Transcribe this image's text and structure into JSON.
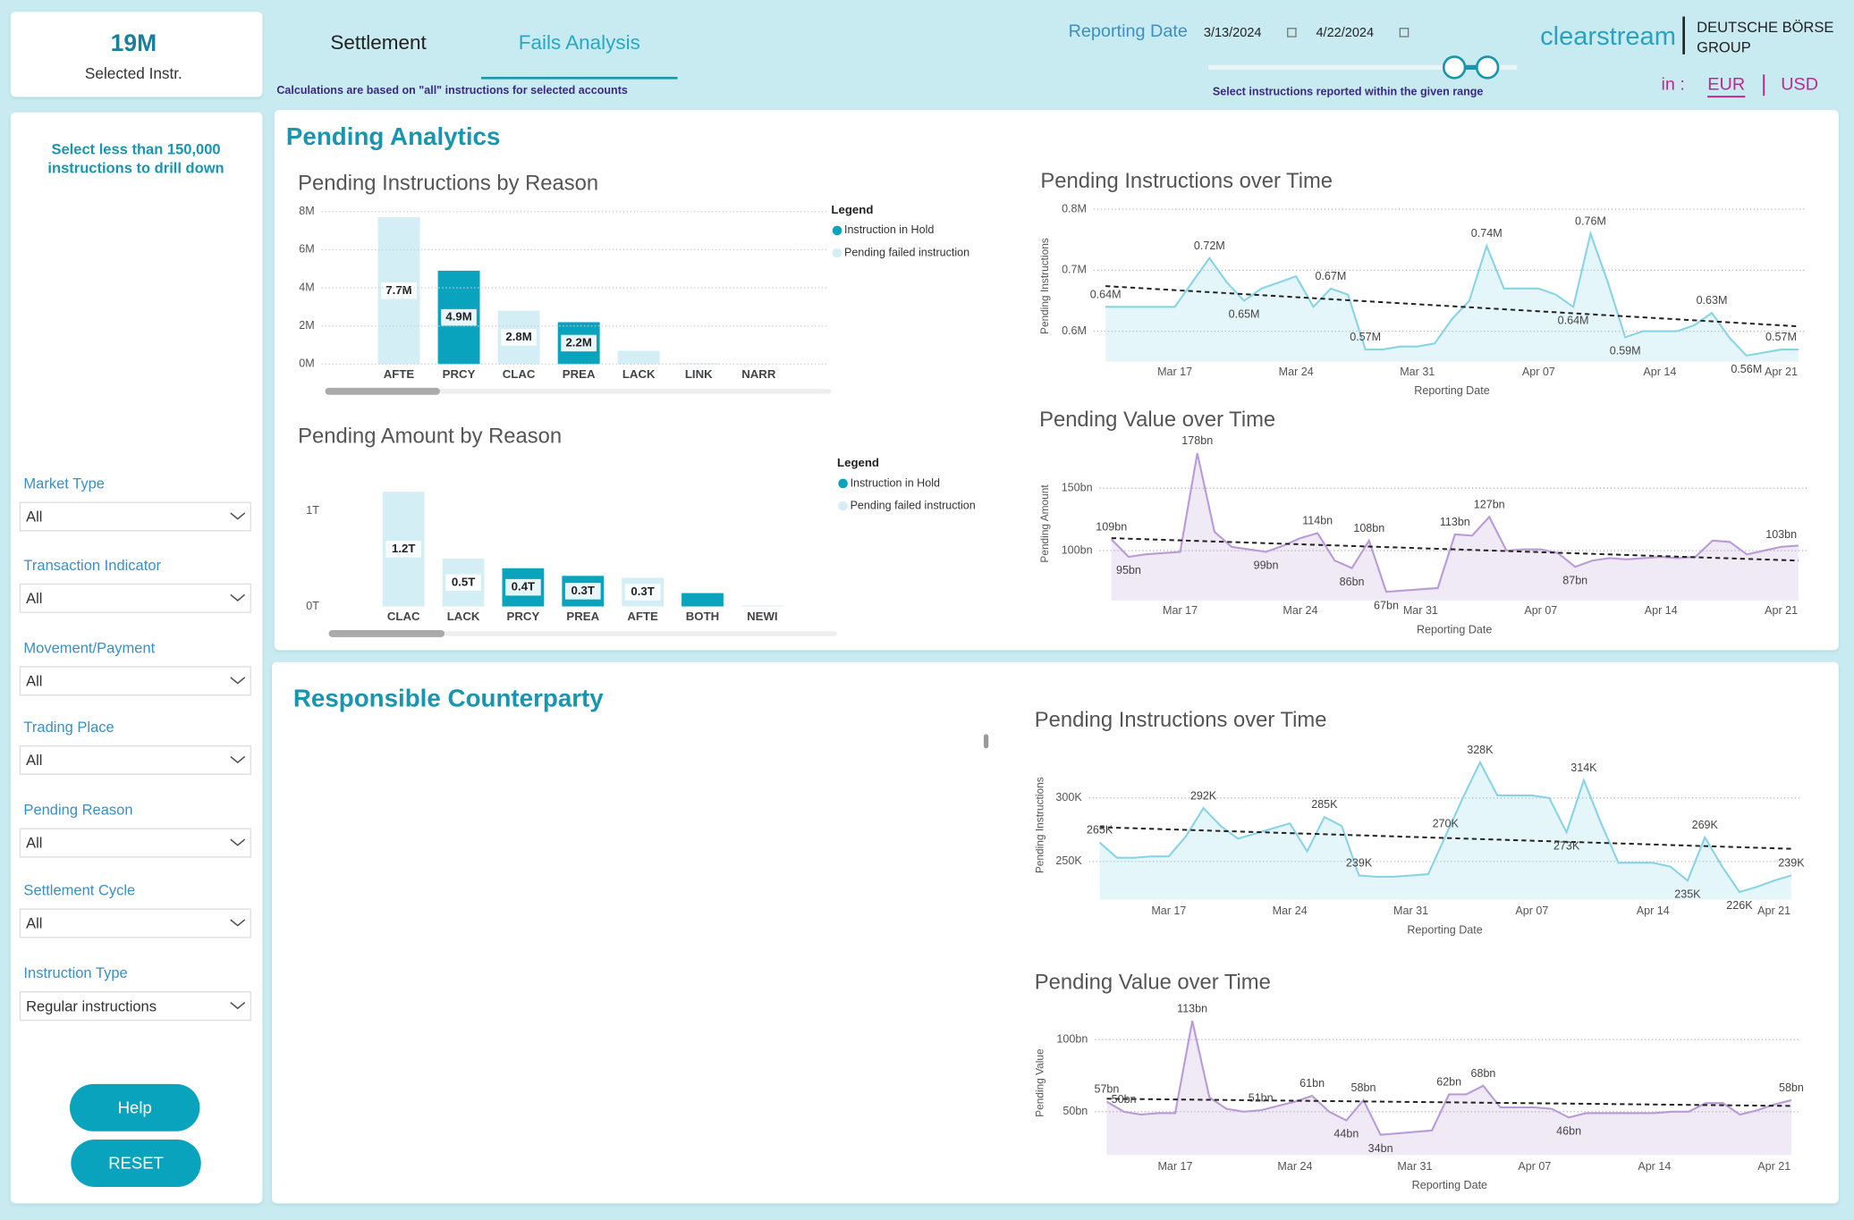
{
  "header": {
    "selected_count": "19M",
    "selected_label": "Selected Instr.",
    "tabs": [
      "Settlement",
      "Fails Analysis"
    ],
    "note": "Calculations are based on \"all\" instructions for selected accounts",
    "date_label": "Reporting Date",
    "date_from": "3/13/2024",
    "date_to": "4/22/2024",
    "date_hint": "Select instructions reported within the given range",
    "brand": "clearstream",
    "group": [
      "DEUTSCHE BÖRSE",
      "GROUP"
    ],
    "currency_label": "in :",
    "currencies": [
      "EUR",
      "USD"
    ]
  },
  "sidebar": {
    "hint": [
      "Select less than 150,000",
      "instructions to drill down"
    ],
    "filters": [
      {
        "label": "Market Type",
        "value": "All"
      },
      {
        "label": "Transaction Indicator",
        "value": "All"
      },
      {
        "label": "Movement/Payment",
        "value": "All"
      },
      {
        "label": "Trading Place",
        "value": "All"
      },
      {
        "label": "Pending Reason",
        "value": "All"
      },
      {
        "label": "Settlement Cycle",
        "value": "All"
      },
      {
        "label": "Instruction Type",
        "value": "Regular instructions"
      }
    ],
    "buttons": [
      "Help",
      "RESET"
    ]
  },
  "sections": [
    "Pending Analytics",
    "Responsible Counterparty"
  ],
  "chart_data": [
    {
      "type": "bar",
      "title": "Pending Instructions by Reason",
      "legend_title": "Legend",
      "grid": true,
      "categories": [
        "AFTE",
        "PRCY",
        "CLAC",
        "PREA",
        "LACK",
        "LINK",
        "NARR"
      ],
      "series": [
        {
          "name": "Instruction in Hold",
          "color": "#0aa3bd",
          "values": [
            0,
            4900000,
            0,
            2200000,
            0,
            0,
            0
          ],
          "value_labels": [
            null,
            "4.9M",
            null,
            "2.2M",
            null,
            null,
            null
          ]
        },
        {
          "name": "Pending failed instruction",
          "color": "#d4eef6",
          "values": [
            7700000,
            0,
            2800000,
            0,
            700000,
            50000,
            10000
          ],
          "value_labels": [
            "7.7M",
            null,
            "2.8M",
            null,
            null,
            null,
            null
          ]
        }
      ],
      "ylim": [
        0,
        8000000
      ],
      "yticks": [
        {
          "value": 0,
          "label": "0M"
        },
        {
          "value": 2000000,
          "label": "2M"
        },
        {
          "value": 4000000,
          "label": "4M"
        },
        {
          "value": 6000000,
          "label": "6M"
        },
        {
          "value": 8000000,
          "label": "8M"
        }
      ]
    },
    {
      "type": "bar",
      "title": "Pending Amount by Reason",
      "legend_title": "Legend",
      "grid": false,
      "categories": [
        "CLAC",
        "LACK",
        "PRCY",
        "PREA",
        "AFTE",
        "BOTH",
        "NEWI"
      ],
      "series": [
        {
          "name": "Instruction in Hold",
          "color": "#0aa3bd",
          "values": [
            0,
            0,
            400000000000.0,
            320000000000.0,
            0,
            140000000000.0,
            0
          ],
          "value_labels": [
            null,
            null,
            "0.4T",
            "0.3T",
            null,
            null,
            null
          ]
        },
        {
          "name": "Pending failed instruction",
          "color": "#d4eef6",
          "values": [
            1200000000000.0,
            500000000000.0,
            0,
            0,
            300000000000.0,
            0,
            10000000000.0
          ],
          "value_labels": [
            "1.2T",
            "0.5T",
            null,
            null,
            "0.3T",
            null,
            null
          ]
        }
      ],
      "ylim": [
        0,
        1200000000000.0
      ],
      "yticks": [
        {
          "value": 0,
          "label": "0T"
        },
        {
          "value": 1000000000000.0,
          "label": "1T"
        }
      ]
    },
    {
      "type": "line",
      "title": "Pending Instructions over Time",
      "xlabel": "Reporting Date",
      "ylabel": "Pending Instructions",
      "grid": true,
      "color": "#88d4e6",
      "x": [
        "Mar 13",
        "Mar 14",
        "Mar 15",
        "Mar 16",
        "Mar 17",
        "Mar 18",
        "Mar 19",
        "Mar 20",
        "Mar 21",
        "Mar 22",
        "Mar 23",
        "Mar 24",
        "Mar 25",
        "Mar 26",
        "Mar 27",
        "Mar 28",
        "Mar 29",
        "Mar 30",
        "Mar 31",
        "Apr 01",
        "Apr 02",
        "Apr 03",
        "Apr 04",
        "Apr 05",
        "Apr 06",
        "Apr 07",
        "Apr 08",
        "Apr 09",
        "Apr 10",
        "Apr 11",
        "Apr 12",
        "Apr 13",
        "Apr 14",
        "Apr 15",
        "Apr 16",
        "Apr 17",
        "Apr 18",
        "Apr 19",
        "Apr 20",
        "Apr 21",
        "Apr 22"
      ],
      "xticks": [
        "Mar 17",
        "Mar 24",
        "Mar 31",
        "Apr 07",
        "Apr 14",
        "Apr 21"
      ],
      "values": [
        640000,
        640000,
        640000,
        640000,
        640000,
        680000,
        720000,
        680000,
        650000,
        670000,
        680000,
        690000,
        640000,
        670000,
        660000,
        570000,
        570000,
        575000,
        575000,
        580000,
        620000,
        650000,
        740000,
        670000,
        670000,
        670000,
        660000,
        640000,
        760000,
        680000,
        590000,
        600000,
        600000,
        600000,
        610000,
        630000,
        590000,
        560000,
        565000,
        570000,
        570000
      ],
      "value_labels": [
        "0.64M",
        null,
        null,
        null,
        null,
        null,
        "0.72M",
        null,
        "0.65M",
        null,
        null,
        null,
        null,
        "0.67M",
        null,
        "0.57M",
        null,
        null,
        null,
        null,
        null,
        null,
        "0.74M",
        null,
        null,
        null,
        null,
        "0.64M",
        "0.76M",
        null,
        "0.59M",
        null,
        null,
        null,
        null,
        "0.63M",
        null,
        "0.56M",
        null,
        "0.57M",
        null
      ],
      "trend": [
        674000,
        608000
      ],
      "ylim": [
        550000,
        800000
      ],
      "yticks": [
        {
          "value": 600000,
          "label": "0.6M"
        },
        {
          "value": 700000,
          "label": "0.7M"
        },
        {
          "value": 800000,
          "label": "0.8M"
        }
      ]
    },
    {
      "type": "line",
      "title": "Pending Value over Time",
      "xlabel": "Reporting Date",
      "ylabel": "Pending Amount",
      "grid": true,
      "color": "#b99bd8",
      "x": [
        "Mar 13",
        "Mar 14",
        "Mar 15",
        "Mar 16",
        "Mar 17",
        "Mar 18",
        "Mar 19",
        "Mar 20",
        "Mar 21",
        "Mar 22",
        "Mar 23",
        "Mar 24",
        "Mar 25",
        "Mar 26",
        "Mar 27",
        "Mar 28",
        "Mar 29",
        "Mar 30",
        "Mar 31",
        "Apr 01",
        "Apr 02",
        "Apr 03",
        "Apr 04",
        "Apr 05",
        "Apr 06",
        "Apr 07",
        "Apr 08",
        "Apr 09",
        "Apr 10",
        "Apr 11",
        "Apr 12",
        "Apr 13",
        "Apr 14",
        "Apr 15",
        "Apr 16",
        "Apr 17",
        "Apr 18",
        "Apr 19",
        "Apr 20",
        "Apr 21",
        "Apr 22"
      ],
      "xticks": [
        "Mar 17",
        "Mar 24",
        "Mar 31",
        "Apr 07",
        "Apr 14",
        "Apr 21"
      ],
      "values": [
        109000000000.0,
        95000000000.0,
        97000000000.0,
        98000000000.0,
        99000000000.0,
        178000000000.0,
        115000000000.0,
        103000000000.0,
        101000000000.0,
        99000000000.0,
        104000000000.0,
        110000000000.0,
        114000000000.0,
        92000000000.0,
        86000000000.0,
        108000000000.0,
        67000000000.0,
        68000000000.0,
        69000000000.0,
        70000000000.0,
        113000000000.0,
        112000000000.0,
        127000000000.0,
        100000000000.0,
        101000000000.0,
        101000000000.0,
        98000000000.0,
        87000000000.0,
        92000000000.0,
        94000000000.0,
        93000000000.0,
        94000000000.0,
        95000000000.0,
        94000000000.0,
        95000000000.0,
        108000000000.0,
        107000000000.0,
        97000000000.0,
        100000000000.0,
        103000000000.0,
        104000000000.0
      ],
      "value_labels": [
        "109bn",
        "95bn",
        null,
        null,
        null,
        "178bn",
        null,
        null,
        null,
        "99bn",
        null,
        null,
        "114bn",
        null,
        "86bn",
        "108bn",
        "67bn",
        null,
        null,
        null,
        "113bn",
        null,
        "127bn",
        null,
        null,
        null,
        null,
        "87bn",
        null,
        null,
        null,
        null,
        null,
        null,
        null,
        null,
        null,
        null,
        null,
        "103bn",
        null
      ],
      "trend": [
        110000000000.0,
        92000000000.0
      ],
      "ylim": [
        60000000000.0,
        185000000000.0
      ],
      "yticks": [
        {
          "value": 100000000000.0,
          "label": "100bn"
        },
        {
          "value": 150000000000.0,
          "label": "150bn"
        }
      ]
    },
    {
      "type": "line",
      "title": "Pending Instructions over Time",
      "xlabel": "Reporting Date",
      "ylabel": "Pending Instructions",
      "grid": true,
      "color": "#88d4e6",
      "x": [
        "Mar 13",
        "Mar 14",
        "Mar 15",
        "Mar 16",
        "Mar 17",
        "Mar 18",
        "Mar 19",
        "Mar 20",
        "Mar 21",
        "Mar 22",
        "Mar 23",
        "Mar 24",
        "Mar 25",
        "Mar 26",
        "Mar 27",
        "Mar 28",
        "Mar 29",
        "Mar 30",
        "Mar 31",
        "Apr 01",
        "Apr 02",
        "Apr 03",
        "Apr 04",
        "Apr 05",
        "Apr 06",
        "Apr 07",
        "Apr 08",
        "Apr 09",
        "Apr 10",
        "Apr 11",
        "Apr 12",
        "Apr 13",
        "Apr 14",
        "Apr 15",
        "Apr 16",
        "Apr 17",
        "Apr 18",
        "Apr 19",
        "Apr 20",
        "Apr 21",
        "Apr 22"
      ],
      "xticks": [
        "Mar 17",
        "Mar 24",
        "Mar 31",
        "Apr 07",
        "Apr 14",
        "Apr 21"
      ],
      "values": [
        265000,
        253000,
        253000,
        254000,
        254000,
        270000,
        292000,
        278000,
        268000,
        272000,
        276000,
        280000,
        258000,
        285000,
        278000,
        239000,
        238000,
        238000,
        239000,
        240000,
        270000,
        300000,
        328000,
        302000,
        302000,
        302000,
        300000,
        273000,
        314000,
        280000,
        249000,
        249000,
        249000,
        246000,
        235000,
        269000,
        246000,
        226000,
        230000,
        235000,
        239000
      ],
      "value_labels": [
        "265K",
        null,
        null,
        null,
        null,
        null,
        "292K",
        null,
        null,
        null,
        null,
        null,
        null,
        "285K",
        null,
        "239K",
        null,
        null,
        null,
        null,
        "270K",
        null,
        "328K",
        null,
        null,
        null,
        null,
        "273K",
        "314K",
        null,
        null,
        null,
        null,
        null,
        "235K",
        "269K",
        null,
        "226K",
        null,
        null,
        "239K"
      ],
      "trend": [
        277000,
        260000
      ],
      "ylim": [
        220000,
        340000
      ],
      "yticks": [
        {
          "value": 250000,
          "label": "250K"
        },
        {
          "value": 300000,
          "label": "300K"
        }
      ]
    },
    {
      "type": "line",
      "title": "Pending Value over Time",
      "xlabel": "Reporting Date",
      "ylabel": "Pending Value",
      "grid": true,
      "color": "#b99bd8",
      "x": [
        "Mar 13",
        "Mar 14",
        "Mar 15",
        "Mar 16",
        "Mar 17",
        "Mar 18",
        "Mar 19",
        "Mar 20",
        "Mar 21",
        "Mar 22",
        "Mar 23",
        "Mar 24",
        "Mar 25",
        "Mar 26",
        "Mar 27",
        "Mar 28",
        "Mar 29",
        "Mar 30",
        "Mar 31",
        "Apr 01",
        "Apr 02",
        "Apr 03",
        "Apr 04",
        "Apr 05",
        "Apr 06",
        "Apr 07",
        "Apr 08",
        "Apr 09",
        "Apr 10",
        "Apr 11",
        "Apr 12",
        "Apr 13",
        "Apr 14",
        "Apr 15",
        "Apr 16",
        "Apr 17",
        "Apr 18",
        "Apr 19",
        "Apr 20",
        "Apr 21",
        "Apr 22"
      ],
      "xticks": [
        "Mar 17",
        "Mar 24",
        "Mar 31",
        "Apr 07",
        "Apr 14",
        "Apr 21"
      ],
      "values": [
        57000000000.0,
        50000000000.0,
        48000000000.0,
        49000000000.0,
        49000000000.0,
        113000000000.0,
        60000000000.0,
        52000000000.0,
        50000000000.0,
        51000000000.0,
        54000000000.0,
        57000000000.0,
        61000000000.0,
        50000000000.0,
        44000000000.0,
        58000000000.0,
        34000000000.0,
        35000000000.0,
        36000000000.0,
        37000000000.0,
        62000000000.0,
        62000000000.0,
        68000000000.0,
        53000000000.0,
        53000000000.0,
        53000000000.0,
        52000000000.0,
        46000000000.0,
        49000000000.0,
        49000000000.0,
        49000000000.0,
        49000000000.0,
        49000000000.0,
        50000000000.0,
        50000000000.0,
        56000000000.0,
        56000000000.0,
        48000000000.0,
        51000000000.0,
        55000000000.0,
        58000000000.0
      ],
      "value_labels": [
        "57bn",
        "50bn",
        null,
        null,
        null,
        "113bn",
        null,
        null,
        null,
        "51bn",
        null,
        null,
        "61bn",
        null,
        "44bn",
        "58bn",
        "34bn",
        null,
        null,
        null,
        "62bn",
        null,
        "68bn",
        null,
        null,
        null,
        null,
        "46bn",
        null,
        null,
        null,
        null,
        null,
        null,
        null,
        null,
        null,
        null,
        null,
        null,
        "58bn"
      ],
      "trend": [
        59000000000.0,
        54000000000.0
      ],
      "ylim": [
        20000000000.0,
        120000000000.0
      ],
      "yticks": [
        {
          "value": 50000000000.0,
          "label": "50bn"
        },
        {
          "value": 100000000000.0,
          "label": "100bn"
        }
      ]
    }
  ]
}
